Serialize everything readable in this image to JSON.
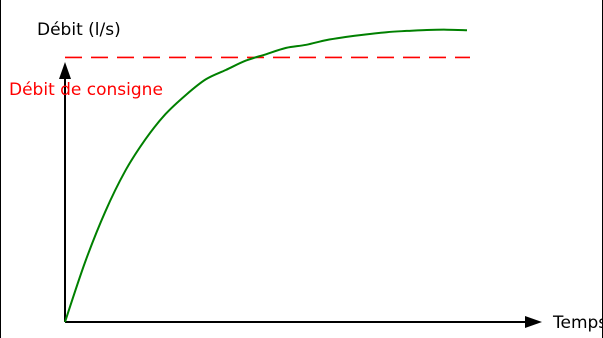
{
  "chart_data": {
    "type": "line",
    "title": "",
    "ylabel": "Débit (l/s)",
    "xlabel": "Temps",
    "grid": false,
    "xlim": [
      0,
      100
    ],
    "ylim": [
      0,
      100
    ],
    "setpoint": {
      "label": "Débit de consigne",
      "value": 84,
      "color": "#ff0000",
      "style": "dashed"
    },
    "series": [
      {
        "color": "#008000",
        "x": [
          0,
          5,
          10,
          15,
          20,
          25,
          30,
          35,
          40,
          45,
          50,
          55,
          60,
          65,
          70,
          75,
          80,
          85,
          90,
          95,
          100
        ],
        "values": [
          0,
          19,
          35,
          48,
          58,
          66,
          72,
          77,
          80,
          83,
          85,
          87,
          88,
          89.5,
          90.5,
          91.3,
          92,
          92.4,
          92.7,
          92.8,
          92.6
        ]
      }
    ]
  },
  "colors": {
    "axis": "#000000",
    "curve": "#008000",
    "setpoint": "#ff0000"
  }
}
